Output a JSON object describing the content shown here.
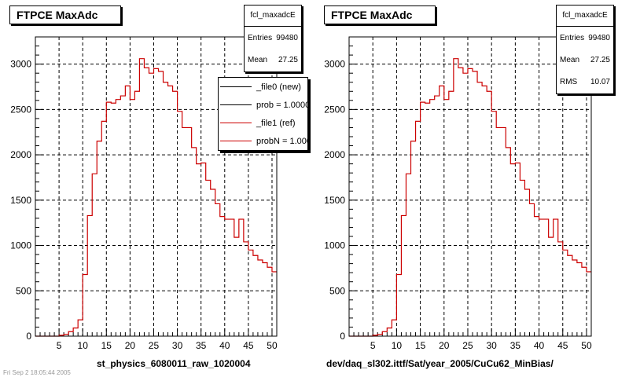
{
  "footer_text": "Fri Sep 2 18:05:44 2005",
  "colors": {
    "ref": "#cc0000",
    "new": "#000000",
    "grid": "#000000"
  },
  "chart_data": [
    {
      "type": "bar",
      "title": "FTPCE MaxAdc",
      "xlabel": "st_physics_6080011_raw_1020004",
      "ylabel": "",
      "xlim": [
        0,
        51
      ],
      "ylim": [
        0,
        3300
      ],
      "x_ticks": [
        5,
        10,
        15,
        20,
        25,
        30,
        35,
        40,
        45,
        50
      ],
      "y_ticks": [
        0,
        500,
        1000,
        1500,
        2000,
        2500,
        3000
      ],
      "grid": true,
      "bin_edges_start": 0,
      "bin_width": 1,
      "values": [
        0,
        0,
        0,
        0,
        0,
        10,
        20,
        50,
        90,
        180,
        680,
        1330,
        1790,
        2150,
        2370,
        2580,
        2570,
        2610,
        2650,
        2760,
        2610,
        2700,
        3060,
        2960,
        2900,
        2950,
        2920,
        2800,
        2760,
        2700,
        2480,
        2300,
        2300,
        2080,
        1900,
        1910,
        1720,
        1620,
        1460,
        1320,
        1290,
        1290,
        1090,
        1290,
        1040,
        950,
        890,
        840,
        810,
        760,
        710
      ],
      "series": [
        {
          "name": "_file1 (ref)"
        }
      ],
      "stats": {
        "name": "fcl_maxadcE",
        "entries": "99480",
        "mean": "27.25"
      },
      "legend": {
        "placement": "top-right",
        "entries": [
          "_file0 (new)",
          "prob = 1.000000",
          "_file1 (ref)",
          "probN = 1.000000"
        ]
      }
    },
    {
      "type": "bar",
      "title": "FTPCE MaxAdc",
      "xlabel": "dev/daq_sl302.ittf/Sat/year_2005/CuCu62_MinBias/",
      "ylabel": "",
      "xlim": [
        0,
        51
      ],
      "ylim": [
        0,
        3300
      ],
      "x_ticks": [
        5,
        10,
        15,
        20,
        25,
        30,
        35,
        40,
        45,
        50
      ],
      "y_ticks": [
        0,
        500,
        1000,
        1500,
        2000,
        2500,
        3000
      ],
      "grid": true,
      "bin_edges_start": 0,
      "bin_width": 1,
      "values": [
        0,
        0,
        0,
        0,
        0,
        10,
        20,
        50,
        90,
        180,
        680,
        1330,
        1790,
        2150,
        2370,
        2580,
        2570,
        2610,
        2650,
        2760,
        2610,
        2700,
        3060,
        2960,
        2900,
        2950,
        2920,
        2800,
        2760,
        2700,
        2480,
        2300,
        2300,
        2080,
        1900,
        1910,
        1720,
        1620,
        1460,
        1320,
        1290,
        1290,
        1090,
        1290,
        1040,
        950,
        890,
        840,
        810,
        760,
        710
      ],
      "stats": {
        "name": "fcl_maxadcE",
        "entries": "99480",
        "mean": "27.25",
        "rms": "10.07"
      }
    }
  ]
}
